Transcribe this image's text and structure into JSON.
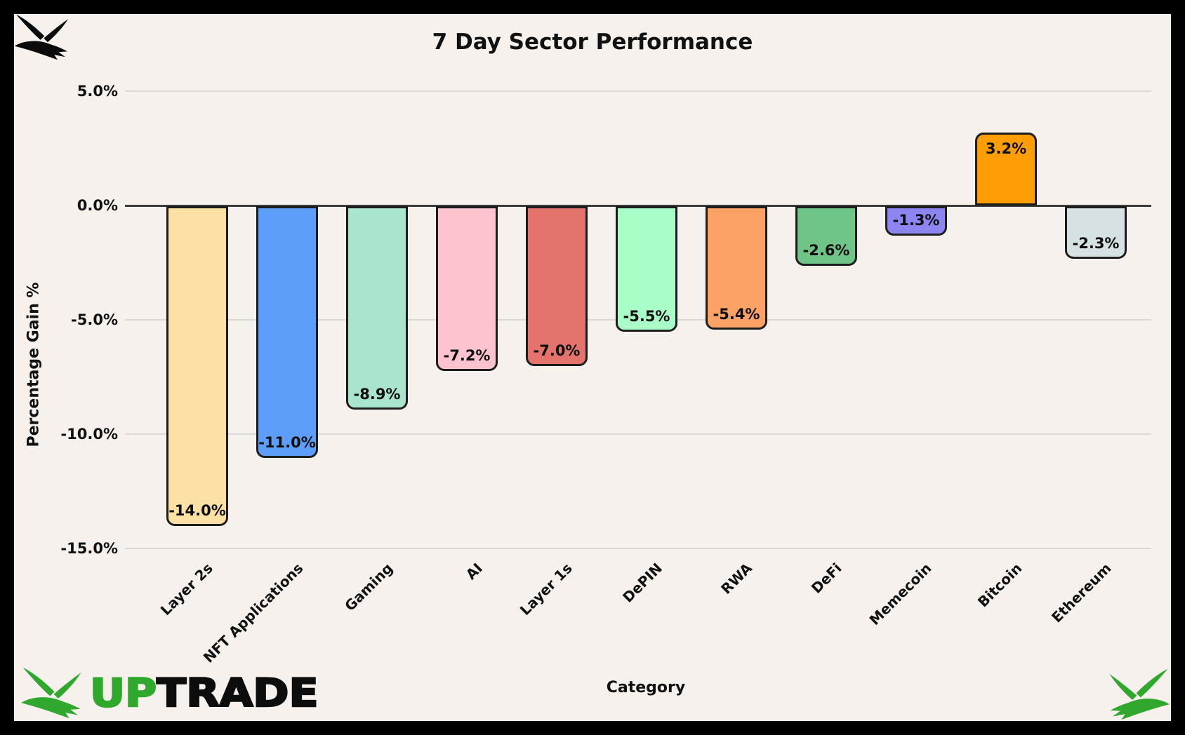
{
  "title": "7 Day Sector Performance",
  "xlabel": "Category",
  "ylabel": "Percentage Gain %",
  "ytick_labels": [
    "5.0%",
    "0.0%",
    "-5.0%",
    "-10.0%",
    "-15.0%"
  ],
  "logo": {
    "up": "UP",
    "trade": "TRADE"
  },
  "icons": {
    "top_left": "bird-icon-black",
    "logo": "bird-icon-green",
    "bottom_right": "bird-icon-green-mirrored"
  },
  "colors": {
    "background": "#f6f1ec",
    "frame": "#000000",
    "brand_green": "#2fa82d",
    "brand_black": "#0d0d0d",
    "grid": "#d9d8d5",
    "zero_axis": "#3b3b3b",
    "bar_border": "#1d1d1d"
  },
  "chart_data": {
    "type": "bar",
    "title": "7 Day Sector Performance",
    "xlabel": "Category",
    "ylabel": "Percentage Gain %",
    "categories": [
      "Layer 2s",
      "NFT Applications",
      "Gaming",
      "AI",
      "Layer 1s",
      "DePIN",
      "RWA",
      "DeFi",
      "Memecoin",
      "Bitcoin",
      "Ethereum"
    ],
    "values": [
      -14.0,
      -11.0,
      -8.9,
      -7.2,
      -7.0,
      -5.5,
      -5.4,
      -2.6,
      -1.3,
      3.2,
      -2.3
    ],
    "value_labels": [
      "-14.0%",
      "-11.0%",
      "-8.9%",
      "-7.2%",
      "-7.0%",
      "-5.5%",
      "-5.4%",
      "-2.6%",
      "-1.3%",
      "3.2%",
      "-2.3%"
    ],
    "bar_colors": [
      "#fde1a4",
      "#5c9efa",
      "#a9e5cd",
      "#fdc3ce",
      "#e4736b",
      "#a9fdc7",
      "#fca267",
      "#6fc487",
      "#8d85f2",
      "#fe9e06",
      "#d5e1e2"
    ],
    "yticks": [
      5,
      0,
      -5,
      -10,
      -15
    ],
    "ylim": [
      -15.5,
      6.3
    ],
    "grid": true,
    "legend": false,
    "value_label_position": "inside-end",
    "bar_corner": "rounded-end"
  }
}
